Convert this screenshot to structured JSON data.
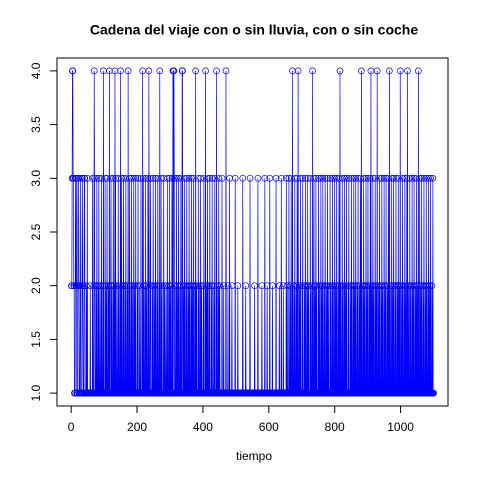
{
  "chart_data": {
    "type": "line",
    "title": "Cadena del viaje con o sin lluvia, con o sin coche",
    "xlabel": "tiempo",
    "color": "#0000ff",
    "xlim": [
      -42.96,
      1143.96
    ],
    "xticks": [
      0,
      200,
      400,
      600,
      800,
      1000
    ],
    "ylim": [
      0.88,
      4.12
    ],
    "yticks": [
      {
        "value": 1,
        "label": "1.0"
      },
      {
        "value": 1.5,
        "label": "1.5"
      },
      {
        "value": 2,
        "label": "2.0"
      },
      {
        "value": 2.5,
        "label": "2.5"
      },
      {
        "value": 3,
        "label": "3.0"
      },
      {
        "value": 3.5,
        "label": "3.5"
      },
      {
        "value": 4,
        "label": "4.0"
      }
    ],
    "values": [
      2,
      2,
      3,
      4,
      4,
      3,
      3,
      2,
      2,
      1,
      1,
      1,
      3,
      2,
      2,
      3,
      1,
      1,
      1,
      2,
      3,
      3,
      2,
      1,
      1,
      1,
      2,
      3,
      1,
      1,
      1,
      1,
      2,
      3,
      2,
      1,
      1,
      1,
      2,
      3,
      3,
      1,
      1,
      1,
      1,
      2,
      1,
      1,
      3,
      1,
      1,
      1,
      1,
      1,
      1,
      1,
      1,
      2,
      1,
      1,
      1,
      1,
      1,
      1,
      3,
      1,
      1,
      1,
      2,
      4,
      3,
      1,
      1,
      1,
      2,
      1,
      1,
      3,
      1,
      1,
      1,
      2,
      1,
      3,
      1,
      1,
      1,
      2,
      1,
      1,
      1,
      3,
      1,
      1,
      1,
      2,
      1,
      4,
      1,
      1,
      1,
      1,
      3,
      1,
      1,
      2,
      1,
      1,
      3,
      1,
      1,
      1,
      2,
      1,
      1,
      4,
      1,
      1,
      1,
      2,
      3,
      1,
      1,
      2,
      1,
      1,
      1,
      3,
      1,
      1,
      2,
      1,
      4,
      1,
      3,
      1,
      1,
      1,
      2,
      1,
      1,
      1,
      3,
      1,
      1,
      2,
      1,
      1,
      1,
      4,
      1,
      1,
      3,
      1,
      1,
      1,
      2,
      1,
      3,
      1,
      1,
      1,
      2,
      1,
      1,
      3,
      1,
      1,
      1,
      2,
      1,
      1,
      4,
      1,
      1,
      1,
      3,
      1,
      2,
      1,
      1,
      1,
      3,
      1,
      1,
      2,
      1,
      1,
      1,
      3,
      1,
      1,
      2,
      1,
      1,
      3,
      1,
      1,
      1,
      1,
      2,
      1,
      3,
      1,
      1,
      1,
      1,
      2,
      1,
      1,
      1,
      3,
      1,
      1,
      1,
      1,
      4,
      1,
      3,
      1,
      1,
      2,
      1,
      1,
      1,
      3,
      1,
      1,
      2,
      1,
      1,
      1,
      3,
      1,
      1,
      4,
      1,
      1,
      1,
      2,
      3,
      1,
      1,
      1,
      1,
      2,
      1,
      1,
      3,
      1,
      1,
      1,
      2,
      1,
      1,
      3,
      1,
      1,
      1,
      2,
      1,
      1,
      3,
      1,
      1,
      1,
      2,
      1,
      4,
      1,
      1,
      1,
      3,
      1,
      1,
      2,
      1,
      1,
      1,
      1,
      3,
      1,
      1,
      2,
      1,
      1,
      1,
      2,
      1,
      1,
      1,
      3,
      1,
      1,
      1,
      2,
      1,
      1,
      3,
      1,
      1,
      2,
      1,
      1,
      1,
      3,
      1,
      1,
      4,
      1,
      4,
      4,
      3,
      1,
      1,
      2,
      1,
      1,
      1,
      3,
      1,
      1,
      2,
      1,
      1,
      3,
      1,
      1,
      1,
      2,
      1,
      1,
      3,
      1,
      1,
      1,
      4,
      4,
      1,
      1,
      2,
      1,
      1,
      3,
      1,
      1,
      1,
      2,
      1,
      1,
      3,
      1,
      1,
      1,
      2,
      1,
      1,
      3,
      1,
      1,
      2,
      1,
      1,
      1,
      3,
      1,
      1,
      2,
      1,
      1,
      3,
      1,
      1,
      1,
      2,
      1,
      1,
      4,
      1,
      1,
      2,
      1,
      1,
      1,
      1,
      3,
      1,
      1,
      2,
      1,
      1,
      1,
      3,
      1,
      1,
      2,
      1,
      1,
      1,
      1,
      2,
      1,
      3,
      1,
      1,
      1,
      1,
      4,
      1,
      1,
      2,
      1,
      1,
      3,
      1,
      1,
      1,
      2,
      1,
      1,
      3,
      1,
      1,
      1,
      1,
      2,
      1,
      3,
      1,
      1,
      1,
      1,
      2,
      1,
      1,
      3,
      1,
      1,
      1,
      1,
      4,
      1,
      1,
      1,
      2,
      1,
      1,
      3,
      1,
      1,
      2,
      1,
      1,
      1,
      1,
      1,
      1,
      3,
      1,
      1,
      1,
      1,
      2,
      1,
      1,
      1,
      1,
      1,
      1,
      4,
      1,
      1,
      1,
      1,
      1,
      2,
      1,
      1,
      1,
      1,
      3,
      1,
      1,
      1,
      1,
      1,
      1,
      2,
      1,
      1,
      1,
      1,
      1,
      1,
      1,
      1,
      1,
      3,
      1,
      1,
      1,
      1,
      1,
      1,
      1,
      2,
      1,
      1,
      1,
      1,
      1,
      1,
      1,
      1,
      1,
      1,
      1,
      1,
      1,
      1,
      3,
      1,
      1,
      1,
      1,
      1,
      1,
      1,
      1,
      2,
      1,
      1,
      1,
      1,
      1,
      1,
      1,
      1,
      1,
      1,
      1,
      1,
      3,
      1,
      1,
      1,
      1,
      1,
      1,
      1,
      1,
      1,
      1,
      1,
      1,
      1,
      2,
      1,
      1,
      1,
      1,
      1,
      1,
      1,
      1,
      1,
      3,
      1,
      1,
      1,
      1,
      1,
      1,
      1,
      1,
      1,
      1,
      1,
      2,
      1,
      1,
      1,
      1,
      1,
      1,
      1,
      1,
      3,
      1,
      1,
      1,
      1,
      1,
      1,
      2,
      1,
      1,
      1,
      1,
      1,
      1,
      1,
      3,
      1,
      1,
      1,
      1,
      1,
      1,
      1,
      2,
      1,
      1,
      1,
      1,
      1,
      1,
      1,
      1,
      1,
      1,
      3,
      1,
      1,
      1,
      1,
      1,
      1,
      1,
      1,
      1,
      2,
      1,
      1,
      1,
      1,
      1,
      3,
      1,
      1,
      1,
      1,
      1,
      2,
      1,
      1,
      1,
      1,
      1,
      1,
      1,
      1,
      3,
      1,
      1,
      2,
      1,
      1,
      1,
      1,
      3,
      1,
      1,
      1,
      2,
      1,
      1,
      3,
      1,
      1,
      1,
      4,
      1,
      1,
      1,
      2,
      1,
      1,
      3,
      1,
      1,
      1,
      2,
      1,
      1,
      3,
      1,
      1,
      4,
      1,
      1,
      1,
      2,
      1,
      1,
      3,
      1,
      1,
      1,
      1,
      2,
      1,
      3,
      1,
      1,
      1,
      1,
      2,
      1,
      1,
      3,
      1,
      1,
      1,
      2,
      1,
      1,
      3,
      1,
      1,
      2,
      1,
      1,
      1,
      1,
      3,
      1,
      1,
      2,
      1,
      1,
      1,
      4,
      1,
      1,
      1,
      3,
      1,
      1,
      2,
      1,
      1,
      3,
      1,
      1,
      2,
      1,
      1,
      1,
      1,
      3,
      1,
      1,
      2,
      1,
      1,
      1,
      3,
      1,
      1,
      2,
      1,
      1,
      3,
      1,
      1,
      1,
      2,
      1,
      1,
      3,
      1,
      1,
      1,
      2,
      1,
      1,
      3,
      1,
      1,
      2,
      1,
      1,
      1,
      1,
      3,
      1,
      1,
      2,
      1,
      1,
      1,
      3,
      1,
      1,
      2,
      1,
      1,
      1,
      3,
      1,
      1,
      2,
      1,
      1,
      3,
      1,
      1,
      1,
      2,
      1,
      1,
      3,
      1,
      1,
      4,
      1,
      1,
      2,
      1,
      1,
      1,
      3,
      1,
      1,
      2,
      1,
      1,
      1,
      3,
      1,
      1,
      2,
      1,
      1,
      3,
      1,
      1,
      1,
      1,
      2,
      1,
      3,
      1,
      1,
      1,
      1,
      2,
      1,
      1,
      3,
      1,
      1,
      1,
      2,
      1,
      1,
      3,
      1,
      1,
      2,
      1,
      1,
      3,
      1,
      1,
      1,
      2,
      1,
      1,
      3,
      1,
      1,
      1,
      2,
      1,
      1,
      3,
      1,
      1,
      4,
      1,
      1,
      1,
      2,
      1,
      1,
      3,
      1,
      1,
      2,
      1,
      1,
      1,
      3,
      1,
      1,
      2,
      1,
      1,
      3,
      1,
      1,
      1,
      2,
      1,
      1,
      3,
      1,
      4,
      1,
      1,
      2,
      1,
      1,
      3,
      1,
      1,
      2,
      1,
      1,
      1,
      3,
      1,
      1,
      2,
      1,
      1,
      4,
      1,
      1,
      1,
      2,
      1,
      1,
      3,
      1,
      1,
      1,
      2,
      1,
      1,
      3,
      1,
      1,
      2,
      1,
      1,
      1,
      3,
      1,
      1,
      2,
      1,
      1,
      3,
      1,
      1,
      1,
      2,
      1,
      1,
      3,
      1,
      1,
      4,
      1,
      1,
      2,
      1,
      1,
      1,
      3,
      1,
      1,
      2,
      1,
      1,
      3,
      1,
      1,
      1,
      2,
      1,
      1,
      3,
      1,
      1,
      1,
      2,
      1,
      1,
      3,
      1,
      1,
      2,
      1,
      1,
      4,
      1,
      1,
      1,
      2,
      1,
      1,
      3,
      1,
      1,
      1,
      2,
      1,
      1,
      3,
      1,
      1,
      2,
      1,
      1,
      3,
      1,
      4,
      1,
      1,
      2,
      1,
      1,
      1,
      3,
      1,
      1,
      2,
      1,
      1,
      1,
      3,
      1,
      1,
      2,
      1,
      1,
      3,
      1,
      1,
      1,
      2,
      1,
      1,
      3,
      1,
      1,
      2,
      1,
      1,
      4,
      1,
      1,
      1,
      3,
      1,
      1,
      2,
      1,
      1,
      3,
      1,
      1,
      1,
      2,
      1,
      1,
      3,
      1,
      1,
      1,
      2,
      1,
      1,
      3,
      1,
      1,
      2,
      1,
      1,
      1,
      3,
      1,
      1,
      2,
      1,
      1,
      3,
      1,
      1,
      1,
      2,
      1,
      1,
      3,
      1,
      1
    ]
  }
}
